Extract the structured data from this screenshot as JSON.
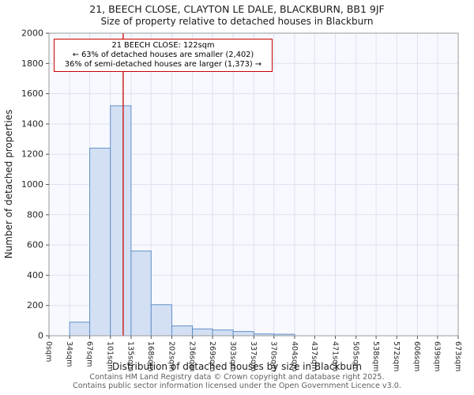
{
  "chart_data": {
    "type": "bar",
    "title": "21, BEECH CLOSE, CLAYTON LE DALE, BLACKBURN, BB1 9JF",
    "subtitle": "Size of property relative to detached houses in Blackburn",
    "xlabel": "Distribution of detached houses by size in Blackburn",
    "ylabel": "Number of detached properties",
    "bin_edges_sqm": [
      0,
      34,
      67,
      101,
      135,
      168,
      202,
      236,
      269,
      303,
      337,
      370,
      404,
      437,
      471,
      505,
      538,
      572,
      606,
      639,
      673
    ],
    "x_tick_labels": [
      "0sqm",
      "34sqm",
      "67sqm",
      "101sqm",
      "135sqm",
      "168sqm",
      "202sqm",
      "236sqm",
      "269sqm",
      "303sqm",
      "337sqm",
      "370sqm",
      "404sqm",
      "437sqm",
      "471sqm",
      "505sqm",
      "538sqm",
      "572sqm",
      "606sqm",
      "639sqm",
      "673sqm"
    ],
    "values": [
      0,
      90,
      1240,
      1520,
      560,
      205,
      65,
      45,
      38,
      28,
      12,
      10,
      0,
      0,
      0,
      0,
      0,
      0,
      0,
      0
    ],
    "ylim": [
      0,
      2000
    ],
    "y_ticks": [
      0,
      200,
      400,
      600,
      800,
      1000,
      1200,
      1400,
      1600,
      1800,
      2000
    ],
    "grid": true,
    "legend": "none",
    "marker": {
      "value_sqm": 122,
      "label": "21 BEECH CLOSE: 122sqm"
    },
    "annotation": {
      "line1": "21 BEECH CLOSE: 122sqm",
      "line2": "← 63% of detached houses are smaller (2,402)",
      "line3": "36% of semi-detached houses are larger (1,373) →"
    },
    "colors": {
      "bar_fill": "#d3e0f4",
      "bar_border": "#6290c8",
      "marker_line": "#cc1515",
      "grid": "#dce2f0",
      "plot_bg": "#f8f9fe",
      "annotation_border": "#cc0000",
      "spine": "#9a9a9a",
      "tick_text": "#262626"
    }
  },
  "footer": {
    "line1": "Contains HM Land Registry data © Crown copyright and database right 2025.",
    "line2": "Contains public sector information licensed under the Open Government Licence v3.0."
  }
}
